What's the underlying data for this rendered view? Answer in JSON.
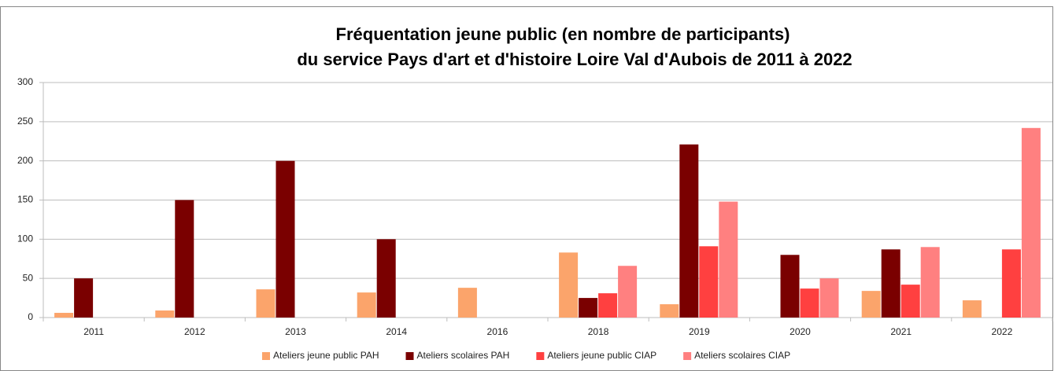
{
  "chart_data": {
    "type": "bar",
    "title": "Fréquentation jeune public (en nombre de participants)",
    "subtitle": "du service Pays d'art et d'histoire Loire Val d'Aubois de 2011 à 2022",
    "categories": [
      "2011",
      "2012",
      "2013",
      "2014",
      "2016",
      "2018",
      "2019",
      "2020",
      "2021",
      "2022"
    ],
    "series": [
      {
        "name": "Ateliers jeune public PAH",
        "color": "#fba46b",
        "values": [
          6,
          9,
          36,
          32,
          38,
          83,
          17,
          0,
          34,
          22
        ]
      },
      {
        "name": "Ateliers scolaires PAH",
        "color": "#7a0000",
        "values": [
          50,
          150,
          200,
          100,
          0,
          25,
          221,
          80,
          87,
          0
        ]
      },
      {
        "name": "Ateliers jeune public CIAP",
        "color": "#ff4040",
        "values": [
          0,
          0,
          0,
          0,
          0,
          31,
          91,
          37,
          42,
          87
        ]
      },
      {
        "name": "Ateliers scolaires CIAP",
        "color": "#ff8080",
        "values": [
          0,
          0,
          0,
          0,
          0,
          66,
          148,
          50,
          90,
          242
        ]
      }
    ],
    "ylim": [
      0,
      300
    ],
    "yticks": [
      0,
      50,
      100,
      150,
      200,
      250,
      300
    ],
    "grid": true,
    "legend": "bottom"
  }
}
